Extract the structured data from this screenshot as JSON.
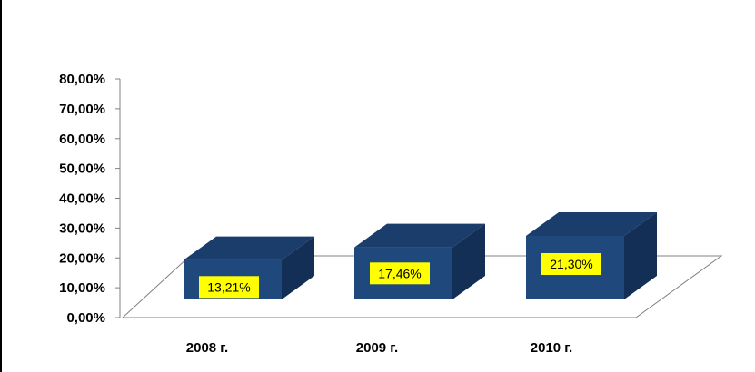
{
  "chart_data": {
    "type": "bar",
    "style": "3d-column",
    "categories": [
      "2008 г.",
      "2009 г.",
      "2010 г."
    ],
    "values": [
      13.21,
      17.46,
      21.3
    ],
    "data_labels": [
      "13,21%",
      "17,46%",
      "21,30%"
    ],
    "y_ticks": [
      "0,00%",
      "10,00%",
      "20,00%",
      "30,00%",
      "40,00%",
      "50,00%",
      "60,00%",
      "70,00%",
      "80,00%"
    ],
    "ylim": [
      0,
      80
    ],
    "title": "",
    "xlabel": "",
    "ylabel": "",
    "grid": false,
    "legend": "none"
  },
  "colors": {
    "bar_front": "#1f497d",
    "bar_top": "#1a3d6b",
    "bar_side": "#142f55",
    "label_background": "#ffff00",
    "axis": "#808080"
  }
}
